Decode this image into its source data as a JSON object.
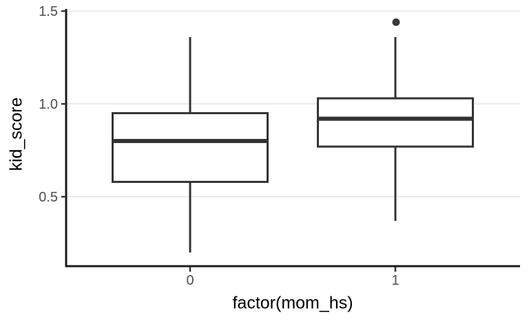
{
  "chart_data": {
    "type": "boxplot",
    "title": "",
    "xlabel": "factor(mom_hs)",
    "ylabel": "kid_score",
    "categories": [
      "0",
      "1"
    ],
    "y_ticks": [
      0.5,
      1.0,
      1.5
    ],
    "y_tick_labels": [
      "0.5",
      "1.0",
      "1.5"
    ],
    "ylim": [
      0.126,
      1.504
    ],
    "grid": "horizontal-major-only",
    "legend": "none",
    "series": [
      {
        "name": "0",
        "whisker_low": 0.2,
        "q1": 0.58,
        "median": 0.8,
        "q3": 0.95,
        "whisker_high": 1.36,
        "outliers": []
      },
      {
        "name": "1",
        "whisker_low": 0.37,
        "q1": 0.77,
        "median": 0.92,
        "q3": 1.03,
        "whisker_high": 1.36,
        "outliers": [
          1.44
        ]
      }
    ],
    "colors": {
      "box_stroke": "#333333",
      "box_fill": "#ffffff",
      "median": "#333333",
      "outlier": "#3a3a3a",
      "grid": "#ebebeb",
      "axis_line": "#1a1a1a",
      "tick_mark": "#333333",
      "tick_label": "#4d4d4d",
      "axis_title": "#000000",
      "background": "#ffffff"
    }
  }
}
